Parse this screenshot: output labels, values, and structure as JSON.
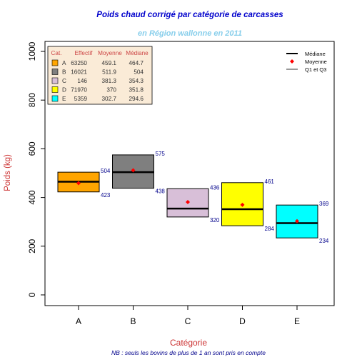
{
  "chart_data": {
    "type": "box",
    "title": "Poids chaud corrigé par catégorie de carcasses",
    "subtitle": "en Région wallonne en 2011",
    "xlabel": "Catégorie",
    "ylabel": "Poids (kg)",
    "note": "NB : seuls les bovins de plus de 1 an sont pris en compte",
    "ylim": [
      0,
      1000
    ],
    "yticks": [
      "0",
      "200",
      "400",
      "600",
      "800",
      "1000"
    ],
    "categories": [
      "A",
      "B",
      "C",
      "D",
      "E"
    ],
    "boxes": [
      {
        "cat": "A",
        "q1": 423,
        "median": 464.7,
        "q3": 504,
        "mean": 459.1,
        "q1_label": "423",
        "q3_label": "504",
        "color": "#FFA500"
      },
      {
        "cat": "B",
        "q1": 438,
        "median": 504,
        "q3": 575,
        "mean": 511.9,
        "q1_label": "438",
        "q3_label": "575",
        "color": "#7F7F7F"
      },
      {
        "cat": "C",
        "q1": 320,
        "median": 354.3,
        "q3": 436,
        "mean": 381.3,
        "q1_label": "320",
        "q3_label": "436",
        "color": "#D8BFD8"
      },
      {
        "cat": "D",
        "q1": 284,
        "median": 351.8,
        "q3": 461,
        "mean": 370,
        "q1_label": "284",
        "q3_label": "461",
        "color": "#FFFF00"
      },
      {
        "cat": "E",
        "q1": 234,
        "median": 294.6,
        "q3": 369,
        "mean": 302.7,
        "q1_label": "234",
        "q3_label": "369",
        "color": "#00FFFF"
      }
    ],
    "table": {
      "headers": [
        "Cat.",
        "Effectif",
        "Moyenne",
        "Médiane"
      ],
      "rows": [
        {
          "cat": "A",
          "effectif": "63250",
          "moyenne": "459.1",
          "mediane": "464.7",
          "color": "#FFA500"
        },
        {
          "cat": "B",
          "effectif": "16021",
          "moyenne": "511.9",
          "mediane": "504",
          "color": "#7F7F7F"
        },
        {
          "cat": "C",
          "effectif": "146",
          "moyenne": "381.3",
          "mediane": "354.3",
          "color": "#D8BFD8"
        },
        {
          "cat": "D",
          "effectif": "71970",
          "moyenne": "370",
          "mediane": "351.8",
          "color": "#FFFF00"
        },
        {
          "cat": "E",
          "effectif": "5359",
          "moyenne": "302.7",
          "mediane": "294.6",
          "color": "#00FFFF"
        }
      ]
    },
    "legend": {
      "position": "top-right",
      "items": [
        {
          "label": "Médiane",
          "kind": "thick-line"
        },
        {
          "label": "Moyenne",
          "kind": "red-diamond"
        },
        {
          "label": "Q1 et Q3",
          "kind": "thin-line"
        }
      ]
    },
    "colors": {
      "title": "#0000CC",
      "subtitle": "#87CEEB",
      "axis_label": "#CC3333",
      "value_label": "#00008B",
      "mean_marker": "#FF0000",
      "table_header": "#CC4444",
      "table_text": "#333333",
      "table_bg": "#FAEBD7",
      "note": "#00008B"
    }
  }
}
